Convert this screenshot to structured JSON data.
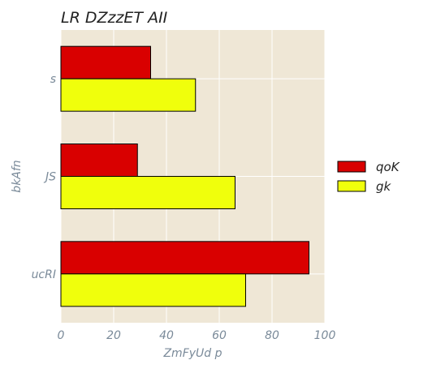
{
  "chart_data": {
    "type": "bar",
    "orientation": "horizontal",
    "title": "LR DZzzET AII",
    "xlabel": "ZmFyUd  p",
    "ylabel": "bkAfn",
    "categories": [
      "s",
      "JS",
      "ucRI"
    ],
    "series": [
      {
        "name": "qoK",
        "values": [
          34,
          29,
          94
        ],
        "color": "#d90000"
      },
      {
        "name": "gk",
        "values": [
          51,
          66,
          70
        ],
        "color": "#f0ff0c"
      }
    ],
    "xlim": [
      0,
      100
    ],
    "xticks": [
      0,
      20,
      40,
      60,
      80,
      100
    ],
    "grid": true,
    "legend_position": "right",
    "background_color": "#efe7d6",
    "grid_color": "#ffffff",
    "edge_color": "#000000"
  }
}
